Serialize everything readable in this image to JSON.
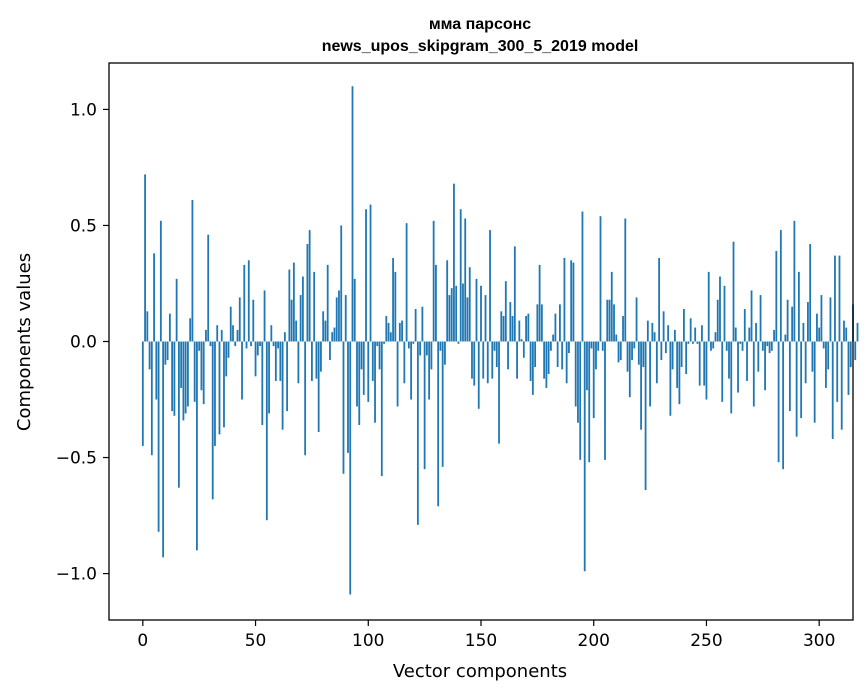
{
  "chart_data": {
    "type": "bar",
    "title": "мма парсонс",
    "subtitle": "news_upos_skipgram_300_5_2019 model",
    "xlabel": "Vector components",
    "ylabel": "Components values",
    "xlim": [
      -15,
      315
    ],
    "ylim": [
      -1.2,
      1.2
    ],
    "xticks": [
      0,
      50,
      100,
      150,
      200,
      250,
      300
    ],
    "yticks": [
      -1.0,
      -0.5,
      0.0,
      0.5,
      1.0
    ],
    "xtick_labels": [
      "0",
      "50",
      "100",
      "150",
      "200",
      "250",
      "300"
    ],
    "ytick_labels": [
      "−1.0",
      "−0.5",
      "0.0",
      "0.5",
      "1.0"
    ],
    "grid": false,
    "legend": "none",
    "bar_color": "#1f77b4",
    "values": [
      -0.45,
      0.72,
      0.13,
      -0.12,
      -0.49,
      0.38,
      -0.25,
      -0.82,
      0.52,
      -0.93,
      -0.1,
      -0.08,
      0.12,
      -0.3,
      -0.32,
      0.27,
      -0.63,
      -0.2,
      -0.34,
      -0.31,
      -0.28,
      0.1,
      0.61,
      -0.26,
      -0.9,
      -0.04,
      -0.21,
      -0.27,
      0.05,
      0.46,
      -0.02,
      -0.68,
      -0.45,
      0.07,
      -0.4,
      0.05,
      -0.37,
      -0.15,
      -0.07,
      0.15,
      0.07,
      -0.02,
      0.05,
      0.19,
      -0.25,
      0.33,
      -0.03,
      0.35,
      -0.02,
      0.18,
      -0.15,
      -0.06,
      -0.02,
      -0.36,
      0.22,
      -0.77,
      -0.31,
      0.07,
      -0.02,
      -0.17,
      -0.03,
      -0.17,
      -0.38,
      0.04,
      -0.3,
      0.31,
      0.18,
      0.34,
      0.09,
      -0.18,
      0.2,
      0.28,
      -0.49,
      0.42,
      0.48,
      -0.17,
      0.3,
      -0.16,
      -0.39,
      -0.13,
      0.13,
      0.09,
      0.33,
      -0.08,
      0.04,
      0.06,
      0.19,
      0.22,
      0.5,
      -0.57,
      0.2,
      -0.48,
      -1.09,
      1.1,
      0.27,
      -0.28,
      -0.36,
      -0.12,
      -0.23,
      0.57,
      -0.26,
      0.59,
      -0.17,
      -0.35,
      -0.02,
      -0.12,
      -0.58,
      -0.01,
      0.11,
      0.08,
      0.04,
      0.36,
      0.3,
      -0.28,
      0.08,
      0.09,
      -0.18,
      0.51,
      -0.03,
      -0.25,
      -0.01,
      0.14,
      -0.79,
      -0.06,
      0.15,
      -0.55,
      -0.06,
      -0.25,
      -0.12,
      0.52,
      0.33,
      -0.71,
      -0.04,
      -0.54,
      -0.1,
      0.35,
      0.2,
      0.23,
      0.68,
      0.24,
      -0.01,
      0.57,
      0.25,
      0.53,
      0.19,
      0.32,
      -0.16,
      -0.19,
      0.27,
      -0.29,
      0.24,
      -0.16,
      0.2,
      -0.18,
      0.48,
      -0.16,
      -0.04,
      -0.11,
      -0.44,
      0.13,
      0.11,
      0.26,
      -0.12,
      0.17,
      0.11,
      0.41,
      -0.16,
      0.09,
      0.01,
      -0.07,
      0.11,
      0.12,
      -0.17,
      -0.23,
      -0.11,
      0.16,
      0.33,
      0.16,
      -0.16,
      -0.2,
      -0.14,
      -0.04,
      0.03,
      0.12,
      -0.11,
      0.16,
      -0.12,
      0.36,
      -0.18,
      -0.05,
      0.35,
      0.34,
      -0.28,
      -0.35,
      -0.51,
      0.56,
      -0.99,
      -0.21,
      -0.52,
      -0.03,
      -0.33,
      -0.12,
      -0.04,
      0.54,
      -0.04,
      -0.51,
      0.18,
      0.18,
      0.3,
      0.16,
      0.03,
      -0.09,
      -0.08,
      0.11,
      0.53,
      -0.13,
      -0.24,
      -0.08,
      -0.03,
      0.19,
      -0.1,
      -0.38,
      -0.11,
      -0.64,
      0.09,
      -0.28,
      0.08,
      0.04,
      -0.18,
      0.36,
      -0.08,
      0.13,
      -0.05,
      0.07,
      -0.32,
      -0.12,
      0.05,
      -0.2,
      -0.27,
      -0.11,
      0.14,
      -0.14,
      -0.01,
      0.1,
      -0.01,
      0.06,
      -0.01,
      -0.19,
      0.07,
      -0.19,
      -0.25,
      0.3,
      -0.04,
      -0.03,
      0.04,
      0.18,
      0.28,
      -0.26,
      0.24,
      -0.04,
      -0.16,
      -0.31,
      0.43,
      0.06,
      -0.22,
      -0.01,
      -0.04,
      0.14,
      -0.17,
      0.06,
      0.22,
      -0.28,
      0.08,
      -0.13,
      0.2,
      -0.04,
      -0.21,
      -0.02,
      -0.05,
      -0.04,
      0.05,
      0.39,
      -0.52,
      0.48,
      -0.55,
      0.03,
      0.18,
      -0.3,
      0.15,
      0.52,
      -0.41,
      0.3,
      -0.33,
      0.08,
      -0.18,
      0.17,
      0.42,
      -0.13,
      -0.35,
      0.12,
      0.06,
      0.2,
      -0.03,
      -0.2,
      -0.12,
      0.19,
      -0.42,
      0.37,
      -0.26,
      0.37,
      -0.38,
      0.09,
      0.06,
      -0.23,
      -0.11,
      0.16,
      -0.08,
      0.08
    ]
  }
}
